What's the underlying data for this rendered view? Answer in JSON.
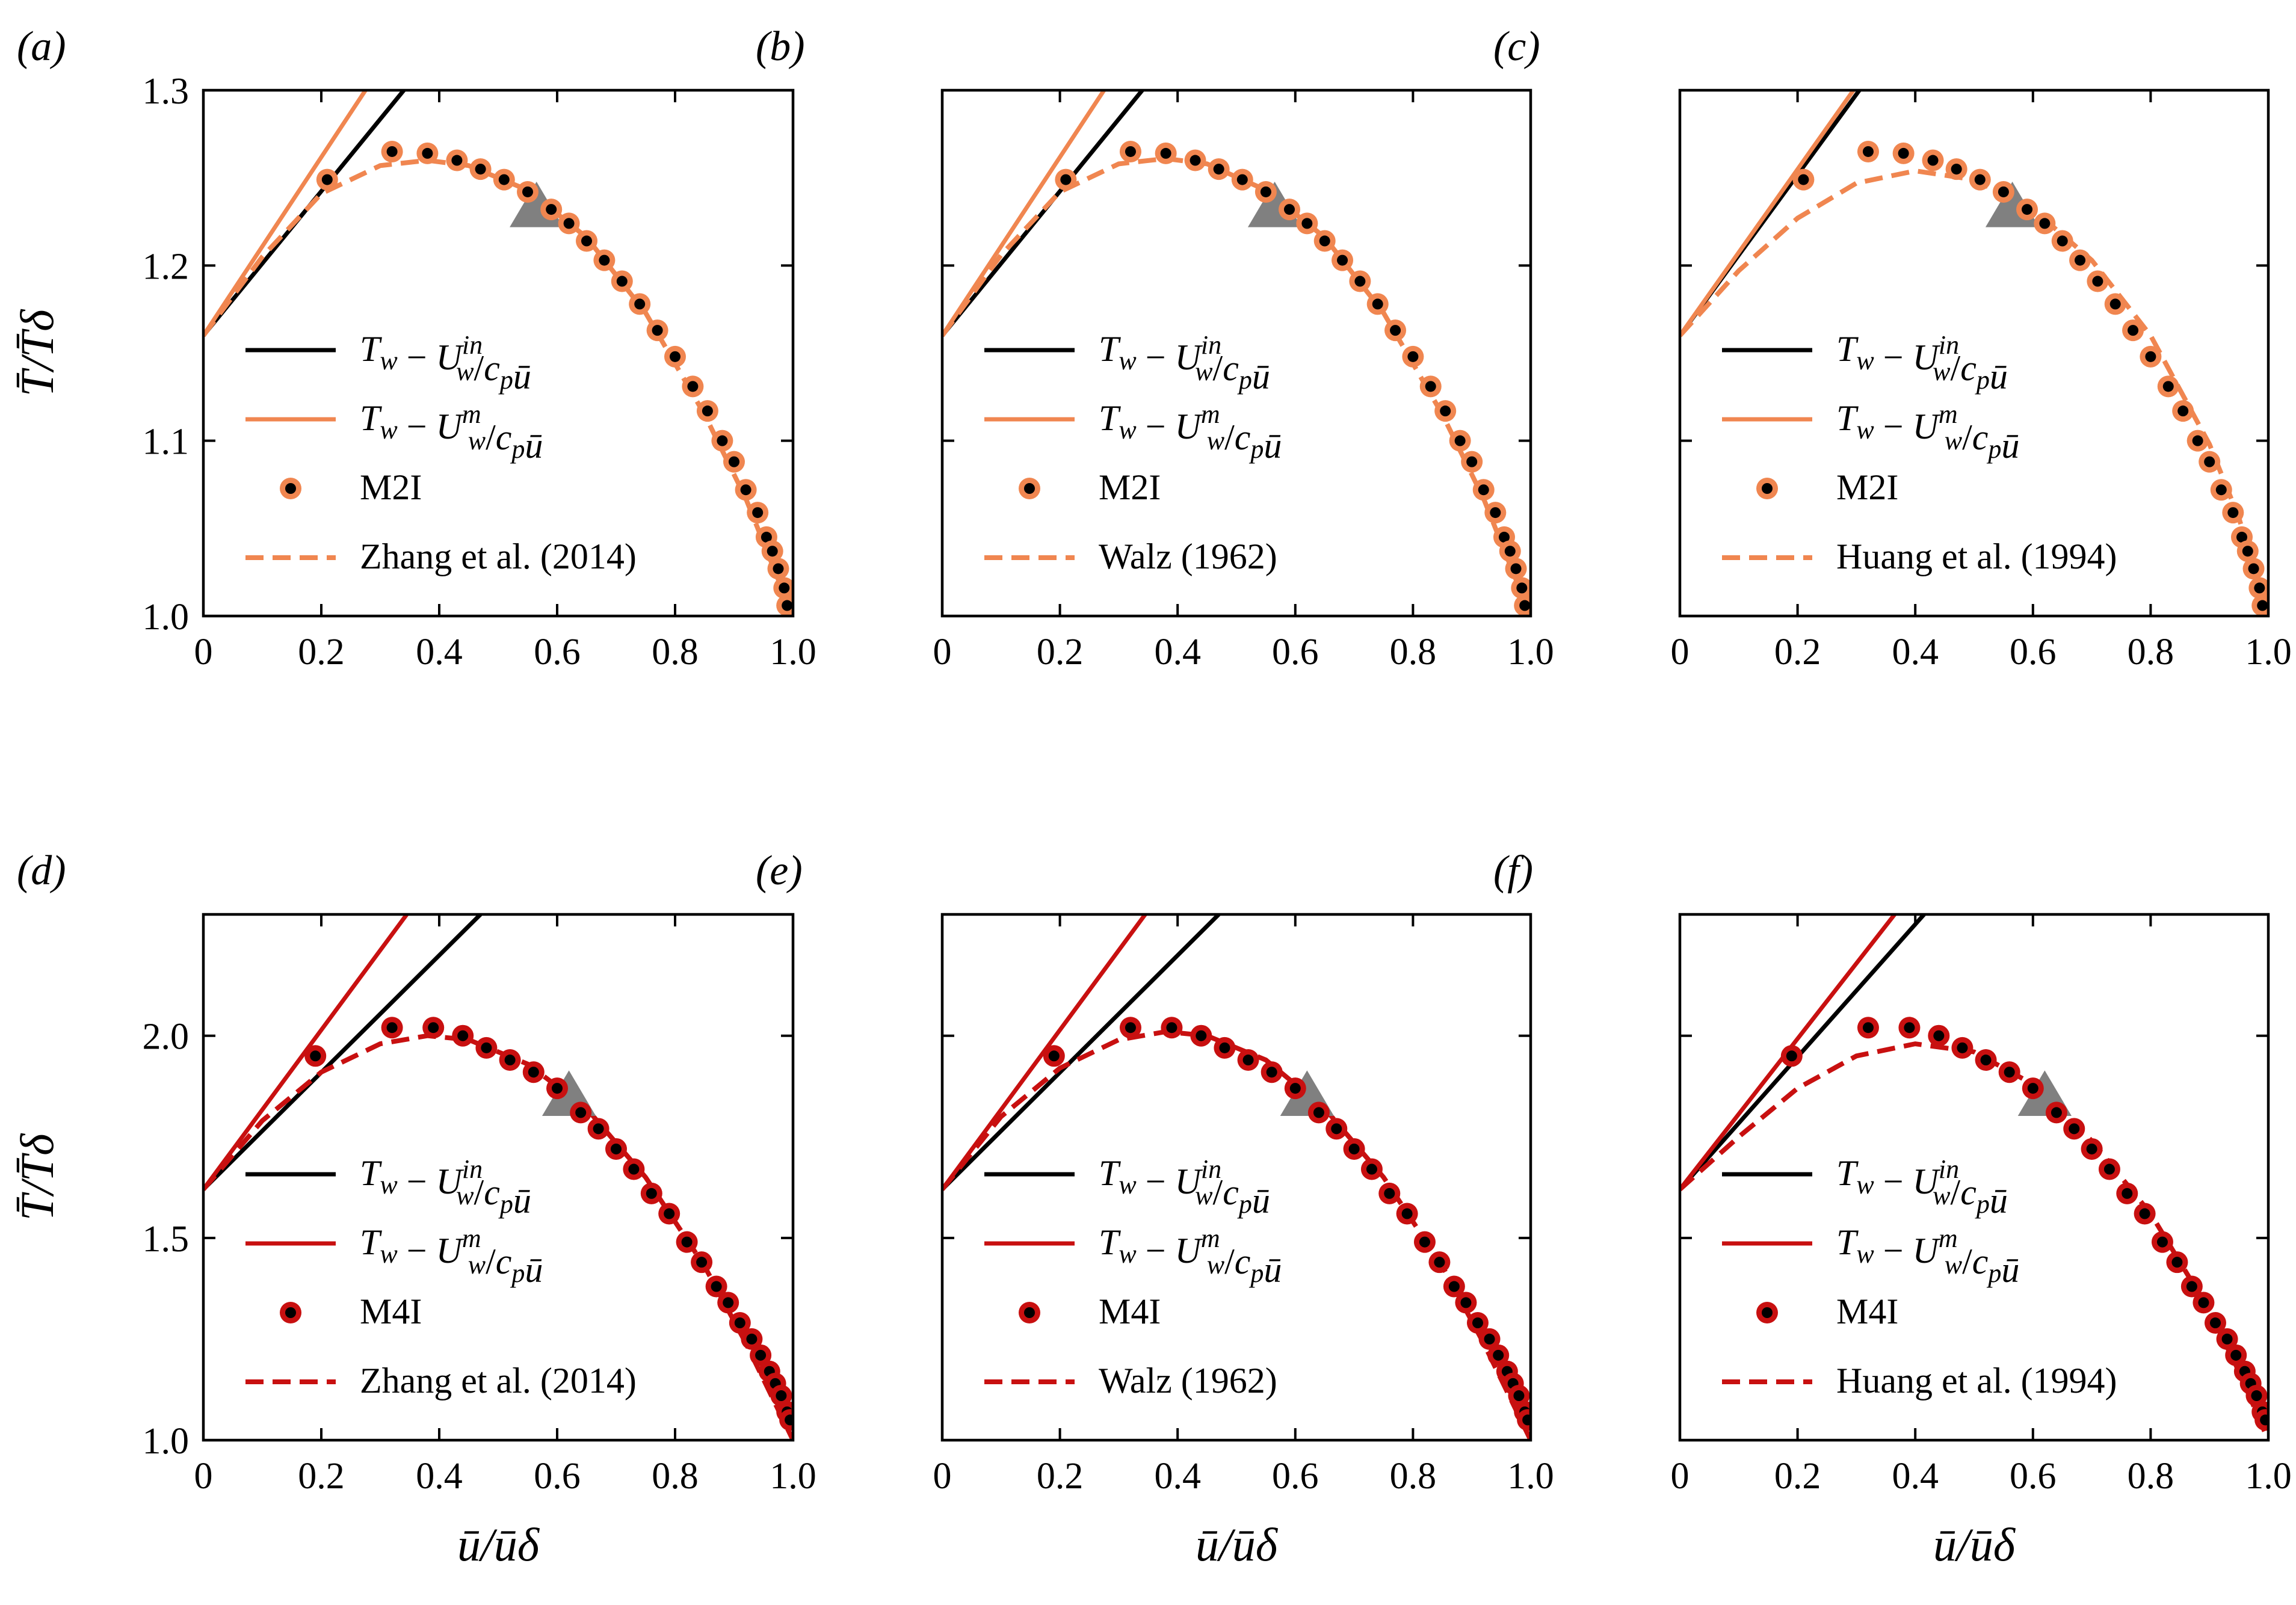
{
  "figure": {
    "colors": {
      "inner": "#000000",
      "m2": "#f08650",
      "m4": "#c81010",
      "marker_fill": "#000000",
      "triangle": "#808080"
    }
  },
  "chart_data": [
    {
      "panel": "(a)",
      "type": "line",
      "xlabel": "",
      "ylabel": "T̄/T̄δ",
      "xlim": [
        0,
        1.0
      ],
      "ylim": [
        1.0,
        1.3
      ],
      "xticks": [
        "0",
        "0.2",
        "0.4",
        "0.6",
        "0.8",
        "1.0"
      ],
      "yticks": [
        "1.0",
        "1.1",
        "1.2",
        "1.3"
      ],
      "series": [
        {
          "name": "Tw − Uw^in/cp ū",
          "style": "solid",
          "color": "#000000",
          "x": [
            0,
            0.34
          ],
          "y": [
            1.16,
            1.3
          ]
        },
        {
          "name": "Tw − Uw^m/cp ū",
          "style": "solid",
          "color": "#f08650",
          "x": [
            0,
            0.275
          ],
          "y": [
            1.16,
            1.3
          ]
        },
        {
          "name": "M2I",
          "style": "markers",
          "color": "#f08650",
          "x": [
            0.21,
            0.32,
            0.38,
            0.43,
            0.47,
            0.51,
            0.55,
            0.59,
            0.62,
            0.65,
            0.68,
            0.71,
            0.74,
            0.77,
            0.8,
            0.83,
            0.855,
            0.88,
            0.9,
            0.92,
            0.94,
            0.955,
            0.965,
            0.975,
            0.985,
            0.99
          ],
          "y": [
            1.249,
            1.265,
            1.264,
            1.26,
            1.255,
            1.249,
            1.242,
            1.232,
            1.224,
            1.214,
            1.203,
            1.191,
            1.178,
            1.163,
            1.148,
            1.131,
            1.117,
            1.1,
            1.088,
            1.072,
            1.059,
            1.045,
            1.037,
            1.027,
            1.016,
            1.006
          ]
        },
        {
          "name": "Zhang et al. (2014)",
          "style": "dashed",
          "color": "#f08650",
          "x": [
            0,
            0.1,
            0.2,
            0.3,
            0.38,
            0.45,
            0.55,
            0.65,
            0.75,
            0.85,
            0.92,
            0.97,
            1.0
          ],
          "y": [
            1.16,
            1.205,
            1.241,
            1.257,
            1.26,
            1.257,
            1.243,
            1.216,
            1.173,
            1.115,
            1.067,
            1.025,
            1.0
          ]
        }
      ],
      "legend": [
        "Tw − Uw^in/cp ū",
        "Tw − Uw^m/cp ū",
        "M2I",
        "Zhang et al. (2014)"
      ],
      "annotations": [
        {
          "type": "triangle",
          "x": 0.565,
          "y": 1.233
        }
      ]
    },
    {
      "panel": "(b)",
      "type": "line",
      "xlabel": "",
      "ylabel": "",
      "xlim": [
        0,
        1.0
      ],
      "ylim": [
        1.0,
        1.3
      ],
      "xticks": [
        "0",
        "0.2",
        "0.4",
        "0.6",
        "0.8",
        "1.0"
      ],
      "yticks": [],
      "series": [
        {
          "name": "Tw − Uw^in/cp ū",
          "style": "solid",
          "color": "#000000",
          "x": [
            0,
            0.34
          ],
          "y": [
            1.16,
            1.3
          ]
        },
        {
          "name": "Tw − Uw^m/cp ū",
          "style": "solid",
          "color": "#f08650",
          "x": [
            0,
            0.275
          ],
          "y": [
            1.16,
            1.3
          ]
        },
        {
          "name": "M2I",
          "style": "markers",
          "color": "#f08650",
          "x": [
            0.21,
            0.32,
            0.38,
            0.43,
            0.47,
            0.51,
            0.55,
            0.59,
            0.62,
            0.65,
            0.68,
            0.71,
            0.74,
            0.77,
            0.8,
            0.83,
            0.855,
            0.88,
            0.9,
            0.92,
            0.94,
            0.955,
            0.965,
            0.975,
            0.985,
            0.99
          ],
          "y": [
            1.249,
            1.265,
            1.264,
            1.26,
            1.255,
            1.249,
            1.242,
            1.232,
            1.224,
            1.214,
            1.203,
            1.191,
            1.178,
            1.163,
            1.148,
            1.131,
            1.117,
            1.1,
            1.088,
            1.072,
            1.059,
            1.045,
            1.037,
            1.027,
            1.016,
            1.006
          ]
        },
        {
          "name": "Walz (1962)",
          "style": "dashed",
          "color": "#f08650",
          "x": [
            0,
            0.1,
            0.2,
            0.3,
            0.38,
            0.45,
            0.55,
            0.65,
            0.75,
            0.85,
            0.92,
            0.97,
            1.0
          ],
          "y": [
            1.16,
            1.206,
            1.242,
            1.258,
            1.261,
            1.258,
            1.243,
            1.216,
            1.173,
            1.115,
            1.067,
            1.025,
            1.0
          ]
        }
      ],
      "legend": [
        "Tw − Uw^in/cp ū",
        "Tw − Uw^m/cp ū",
        "M2I",
        "Walz (1962)"
      ],
      "annotations": [
        {
          "type": "triangle",
          "x": 0.565,
          "y": 1.233
        }
      ]
    },
    {
      "panel": "(c)",
      "type": "line",
      "xlabel": "",
      "ylabel": "",
      "xlim": [
        0,
        1.0
      ],
      "ylim": [
        1.0,
        1.3
      ],
      "xticks": [
        "0",
        "0.2",
        "0.4",
        "0.6",
        "0.8",
        "1.0"
      ],
      "yticks": [],
      "series": [
        {
          "name": "Tw − Uw^in/cp ū",
          "style": "solid",
          "color": "#000000",
          "x": [
            0,
            0.305
          ],
          "y": [
            1.16,
            1.3
          ]
        },
        {
          "name": "Tw − Uw^m/cp ū",
          "style": "solid",
          "color": "#f08650",
          "x": [
            0,
            0.295
          ],
          "y": [
            1.16,
            1.3
          ]
        },
        {
          "name": "M2I",
          "style": "markers",
          "color": "#f08650",
          "x": [
            0.21,
            0.32,
            0.38,
            0.43,
            0.47,
            0.51,
            0.55,
            0.59,
            0.62,
            0.65,
            0.68,
            0.71,
            0.74,
            0.77,
            0.8,
            0.83,
            0.855,
            0.88,
            0.9,
            0.92,
            0.94,
            0.955,
            0.965,
            0.975,
            0.985,
            0.99
          ],
          "y": [
            1.249,
            1.265,
            1.264,
            1.26,
            1.255,
            1.249,
            1.242,
            1.232,
            1.224,
            1.214,
            1.203,
            1.191,
            1.178,
            1.163,
            1.148,
            1.131,
            1.117,
            1.1,
            1.088,
            1.072,
            1.059,
            1.045,
            1.037,
            1.027,
            1.016,
            1.006
          ]
        },
        {
          "name": "Huang et al. (1994)",
          "style": "dashed",
          "color": "#f08650",
          "x": [
            0,
            0.1,
            0.2,
            0.3,
            0.4,
            0.5,
            0.6,
            0.7,
            0.8,
            0.9,
            0.95,
            1.0
          ],
          "y": [
            1.16,
            1.197,
            1.227,
            1.247,
            1.254,
            1.249,
            1.232,
            1.203,
            1.16,
            1.098,
            1.056,
            1.0
          ]
        }
      ],
      "legend": [
        "Tw − Uw^in/cp ū",
        "Tw − Uw^m/cp ū",
        "M2I",
        "Huang et al. (1994)"
      ],
      "annotations": [
        {
          "type": "triangle",
          "x": 0.565,
          "y": 1.233
        }
      ]
    },
    {
      "panel": "(d)",
      "type": "line",
      "xlabel": "ū/ūδ",
      "ylabel": "T̄/T̄δ",
      "xlim": [
        0,
        1.0
      ],
      "ylim": [
        1.0,
        2.3
      ],
      "xticks": [
        "0",
        "0.2",
        "0.4",
        "0.6",
        "0.8",
        "1.0"
      ],
      "yticks": [
        "1.0",
        "1.5",
        "2.0"
      ],
      "series": [
        {
          "name": "Tw − Uw^in/cp ū",
          "style": "solid",
          "color": "#000000",
          "x": [
            0,
            0.47
          ],
          "y": [
            1.62,
            2.3
          ]
        },
        {
          "name": "Tw − Uw^m/cp ū",
          "style": "solid",
          "color": "#c81010",
          "x": [
            0,
            0.345
          ],
          "y": [
            1.62,
            2.3
          ]
        },
        {
          "name": "M4I",
          "style": "markers",
          "color": "#c81010",
          "x": [
            0.19,
            0.32,
            0.39,
            0.44,
            0.48,
            0.52,
            0.56,
            0.6,
            0.64,
            0.67,
            0.7,
            0.73,
            0.76,
            0.79,
            0.82,
            0.845,
            0.87,
            0.89,
            0.91,
            0.93,
            0.945,
            0.96,
            0.97,
            0.98,
            0.99,
            0.995
          ],
          "y": [
            1.95,
            2.02,
            2.02,
            2.0,
            1.97,
            1.94,
            1.91,
            1.87,
            1.81,
            1.77,
            1.72,
            1.67,
            1.61,
            1.56,
            1.49,
            1.44,
            1.38,
            1.34,
            1.29,
            1.25,
            1.21,
            1.17,
            1.14,
            1.11,
            1.07,
            1.05
          ]
        },
        {
          "name": "Zhang et al. (2014)",
          "style": "dashed",
          "color": "#c81010",
          "x": [
            0,
            0.1,
            0.2,
            0.3,
            0.38,
            0.45,
            0.55,
            0.65,
            0.75,
            0.85,
            0.92,
            0.97,
            1.0
          ],
          "y": [
            1.62,
            1.79,
            1.91,
            1.98,
            2.0,
            1.99,
            1.93,
            1.82,
            1.65,
            1.43,
            1.24,
            1.09,
            1.0
          ]
        }
      ],
      "legend": [
        "Tw − Uw^in/cp ū",
        "Tw − Uw^m/cp ū",
        "M4I",
        "Zhang et al. (2014)"
      ],
      "annotations": [
        {
          "type": "triangle",
          "x": 0.62,
          "y": 1.85
        }
      ]
    },
    {
      "panel": "(e)",
      "type": "line",
      "xlabel": "ū/ūδ",
      "ylabel": "",
      "xlim": [
        0,
        1.0
      ],
      "ylim": [
        1.0,
        2.3
      ],
      "xticks": [
        "0",
        "0.2",
        "0.4",
        "0.6",
        "0.8",
        "1.0"
      ],
      "yticks": [],
      "series": [
        {
          "name": "Tw − Uw^in/cp ū",
          "style": "solid",
          "color": "#000000",
          "x": [
            0,
            0.47
          ],
          "y": [
            1.62,
            2.3
          ]
        },
        {
          "name": "Tw − Uw^m/cp ū",
          "style": "solid",
          "color": "#c81010",
          "x": [
            0,
            0.345
          ],
          "y": [
            1.62,
            2.3
          ]
        },
        {
          "name": "M4I",
          "style": "markers",
          "color": "#c81010",
          "x": [
            0.19,
            0.32,
            0.39,
            0.44,
            0.48,
            0.52,
            0.56,
            0.6,
            0.64,
            0.67,
            0.7,
            0.73,
            0.76,
            0.79,
            0.82,
            0.845,
            0.87,
            0.89,
            0.91,
            0.93,
            0.945,
            0.96,
            0.97,
            0.98,
            0.99,
            0.995
          ],
          "y": [
            1.95,
            2.02,
            2.02,
            2.0,
            1.97,
            1.94,
            1.91,
            1.87,
            1.81,
            1.77,
            1.72,
            1.67,
            1.61,
            1.56,
            1.49,
            1.44,
            1.38,
            1.34,
            1.29,
            1.25,
            1.21,
            1.17,
            1.14,
            1.11,
            1.07,
            1.05
          ]
        },
        {
          "name": "Walz (1962)",
          "style": "dashed",
          "color": "#c81010",
          "x": [
            0,
            0.1,
            0.2,
            0.3,
            0.38,
            0.45,
            0.55,
            0.65,
            0.75,
            0.85,
            0.92,
            0.97,
            1.0
          ],
          "y": [
            1.62,
            1.8,
            1.92,
            1.99,
            2.01,
            2.0,
            1.94,
            1.82,
            1.65,
            1.43,
            1.24,
            1.09,
            1.0
          ]
        }
      ],
      "legend": [
        "Tw − Uw^in/cp ū",
        "Tw − Uw^m/cp ū",
        "M4I",
        "Walz (1962)"
      ],
      "annotations": [
        {
          "type": "triangle",
          "x": 0.62,
          "y": 1.85
        }
      ]
    },
    {
      "panel": "(f)",
      "type": "line",
      "xlabel": "ū/ūδ",
      "ylabel": "",
      "xlim": [
        0,
        1.0
      ],
      "ylim": [
        1.0,
        2.3
      ],
      "xticks": [
        "0",
        "0.2",
        "0.4",
        "0.6",
        "0.8",
        "1.0"
      ],
      "yticks": [],
      "series": [
        {
          "name": "Tw − Uw^in/cp ū",
          "style": "solid",
          "color": "#000000",
          "x": [
            0,
            0.415
          ],
          "y": [
            1.62,
            2.3
          ]
        },
        {
          "name": "Tw − Uw^m/cp ū",
          "style": "solid",
          "color": "#c81010",
          "x": [
            0,
            0.365
          ],
          "y": [
            1.62,
            2.3
          ]
        },
        {
          "name": "M4I",
          "style": "markers",
          "color": "#c81010",
          "x": [
            0.19,
            0.32,
            0.39,
            0.44,
            0.48,
            0.52,
            0.56,
            0.6,
            0.64,
            0.67,
            0.7,
            0.73,
            0.76,
            0.79,
            0.82,
            0.845,
            0.87,
            0.89,
            0.91,
            0.93,
            0.945,
            0.96,
            0.97,
            0.98,
            0.99,
            0.995
          ],
          "y": [
            1.95,
            2.02,
            2.02,
            2.0,
            1.97,
            1.94,
            1.91,
            1.87,
            1.81,
            1.77,
            1.72,
            1.67,
            1.61,
            1.56,
            1.49,
            1.44,
            1.38,
            1.34,
            1.29,
            1.25,
            1.21,
            1.17,
            1.14,
            1.11,
            1.07,
            1.05
          ]
        },
        {
          "name": "Huang et al. (1994)",
          "style": "dashed",
          "color": "#c81010",
          "x": [
            0,
            0.1,
            0.2,
            0.3,
            0.4,
            0.5,
            0.6,
            0.7,
            0.8,
            0.9,
            0.95,
            1.0
          ],
          "y": [
            1.62,
            1.75,
            1.87,
            1.95,
            1.98,
            1.96,
            1.88,
            1.74,
            1.56,
            1.32,
            1.17,
            1.0
          ]
        }
      ],
      "legend": [
        "Tw − Uw^in/cp ū",
        "Tw − Uw^m/cp ū",
        "M4I",
        "Huang et al. (1994)"
      ],
      "annotations": [
        {
          "type": "triangle",
          "x": 0.62,
          "y": 1.85
        }
      ]
    }
  ]
}
